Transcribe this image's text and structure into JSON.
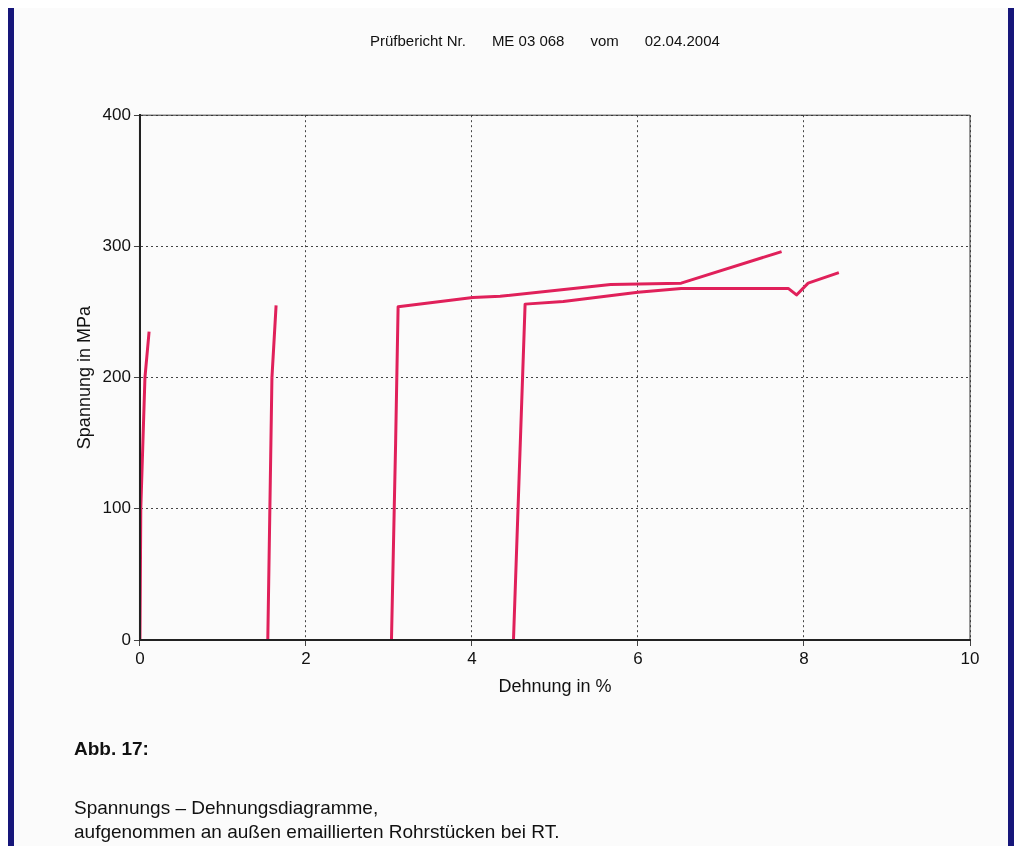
{
  "chart_data": {
    "type": "line",
    "xlabel": "Dehnung in %",
    "ylabel": "Spannung in MPa",
    "xlim": [
      0,
      10
    ],
    "xticks": [
      0,
      2,
      4,
      6,
      8,
      10
    ],
    "ylim": [
      0,
      400
    ],
    "yticks": [
      0,
      100,
      200,
      300,
      400
    ],
    "grid": true,
    "legend": false,
    "marker": "none",
    "line_style": "solid",
    "series": [
      {
        "color": "#e0205a",
        "x": [
          0,
          0.01,
          0.06,
          0.11
        ],
        "values": [
          0,
          100,
          200,
          235
        ]
      },
      {
        "color": "#e0205a",
        "x": [
          1.54,
          1.59,
          1.64
        ],
        "values": [
          0,
          200,
          255
        ]
      },
      {
        "color": "#e0205a",
        "x": [
          3.03,
          3.08,
          3.11,
          4.01,
          4.34,
          5.67,
          6.52,
          7.73
        ],
        "values": [
          0,
          150,
          254,
          261,
          262,
          271,
          272,
          296
        ]
      },
      {
        "color": "#e0205a",
        "x": [
          4.5,
          4.64,
          5.1,
          6.0,
          6.52,
          7.81,
          7.91,
          8.05,
          8.42
        ],
        "values": [
          0,
          256,
          258,
          265,
          268,
          268,
          263,
          272,
          280
        ]
      }
    ],
    "annotations": [
      "Prüfbericht Nr.",
      "ME 03 068",
      "vom",
      "02.04.2004",
      "Abb. 17:",
      "Spannungs – Dehnungsdiagramme,",
      "aufgenommen an außen emaillierten Rohrstücken bei RT."
    ]
  }
}
